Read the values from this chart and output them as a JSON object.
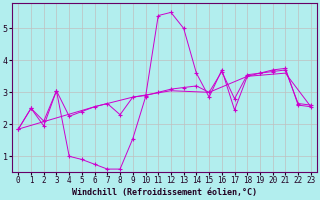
{
  "xlabel": "Windchill (Refroidissement éolien,°C)",
  "bg_color": "#b2eeee",
  "grid_color": "#c0c0c0",
  "line_color": "#cc00cc",
  "xlim": [
    -0.5,
    23.5
  ],
  "ylim": [
    0.5,
    5.8
  ],
  "yticks": [
    1,
    2,
    3,
    4,
    5
  ],
  "xticks": [
    0,
    1,
    2,
    3,
    4,
    5,
    6,
    7,
    8,
    9,
    10,
    11,
    12,
    13,
    14,
    15,
    16,
    17,
    18,
    19,
    20,
    21,
    22,
    23
  ],
  "series1": [
    [
      0,
      1.85
    ],
    [
      1,
      2.5
    ],
    [
      2,
      1.95
    ],
    [
      3,
      3.05
    ],
    [
      4,
      1.0
    ],
    [
      5,
      0.9
    ],
    [
      6,
      0.75
    ],
    [
      7,
      0.6
    ],
    [
      8,
      0.6
    ],
    [
      9,
      1.55
    ],
    [
      10,
      2.85
    ],
    [
      11,
      5.4
    ],
    [
      12,
      5.5
    ],
    [
      13,
      5.0
    ],
    [
      14,
      3.6
    ],
    [
      15,
      2.85
    ],
    [
      16,
      3.7
    ],
    [
      17,
      2.45
    ],
    [
      18,
      3.5
    ],
    [
      19,
      3.6
    ],
    [
      20,
      3.7
    ],
    [
      21,
      3.75
    ],
    [
      22,
      2.6
    ],
    [
      23,
      2.55
    ]
  ],
  "series2": [
    [
      0,
      1.85
    ],
    [
      1,
      2.5
    ],
    [
      2,
      2.1
    ],
    [
      3,
      3.05
    ],
    [
      4,
      2.25
    ],
    [
      5,
      2.4
    ],
    [
      6,
      2.55
    ],
    [
      7,
      2.65
    ],
    [
      8,
      2.3
    ],
    [
      9,
      2.85
    ],
    [
      10,
      2.9
    ],
    [
      11,
      3.0
    ],
    [
      12,
      3.1
    ],
    [
      13,
      3.15
    ],
    [
      14,
      3.2
    ],
    [
      15,
      3.0
    ],
    [
      16,
      3.65
    ],
    [
      17,
      2.8
    ],
    [
      18,
      3.55
    ],
    [
      19,
      3.6
    ],
    [
      20,
      3.65
    ],
    [
      21,
      3.7
    ],
    [
      22,
      2.65
    ],
    [
      23,
      2.6
    ]
  ],
  "series3": [
    [
      0,
      1.85
    ],
    [
      3,
      2.2
    ],
    [
      6,
      2.55
    ],
    [
      9,
      2.85
    ],
    [
      12,
      3.05
    ],
    [
      15,
      3.0
    ],
    [
      18,
      3.5
    ],
    [
      21,
      3.6
    ],
    [
      23,
      2.55
    ]
  ],
  "xlabel_fontsize": 6.0,
  "tick_fontsize": 5.5
}
